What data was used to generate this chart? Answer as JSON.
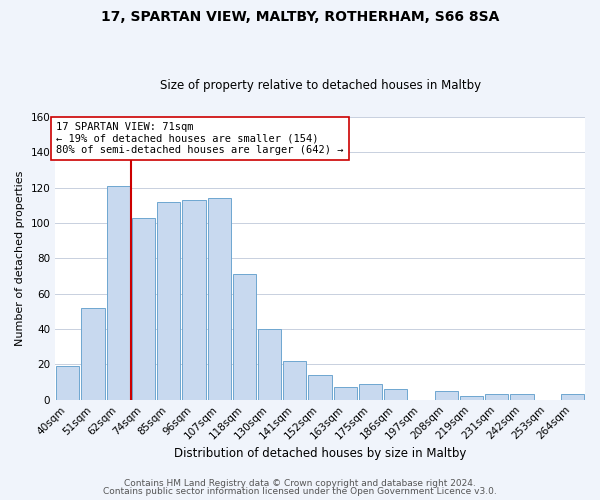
{
  "title": "17, SPARTAN VIEW, MALTBY, ROTHERHAM, S66 8SA",
  "subtitle": "Size of property relative to detached houses in Maltby",
  "xlabel": "Distribution of detached houses by size in Maltby",
  "ylabel": "Number of detached properties",
  "footer_line1": "Contains HM Land Registry data © Crown copyright and database right 2024.",
  "footer_line2": "Contains public sector information licensed under the Open Government Licence v3.0.",
  "bar_labels": [
    "40sqm",
    "51sqm",
    "62sqm",
    "74sqm",
    "85sqm",
    "96sqm",
    "107sqm",
    "118sqm",
    "130sqm",
    "141sqm",
    "152sqm",
    "163sqm",
    "175sqm",
    "186sqm",
    "197sqm",
    "208sqm",
    "219sqm",
    "231sqm",
    "242sqm",
    "253sqm",
    "264sqm"
  ],
  "bar_values": [
    19,
    52,
    121,
    103,
    112,
    113,
    114,
    71,
    40,
    22,
    14,
    7,
    9,
    6,
    0,
    5,
    2,
    3,
    3,
    0,
    3
  ],
  "bar_color": "#c8d9ef",
  "bar_edge_color": "#6ea6d0",
  "vline_x_index": 2,
  "vline_color": "#cc0000",
  "annotation_title": "17 SPARTAN VIEW: 71sqm",
  "annotation_line1": "← 19% of detached houses are smaller (154)",
  "annotation_line2": "80% of semi-detached houses are larger (642) →",
  "annotation_box_facecolor": "white",
  "annotation_box_edgecolor": "#cc0000",
  "ylim": [
    0,
    160
  ],
  "yticks": [
    0,
    20,
    40,
    60,
    80,
    100,
    120,
    140,
    160
  ],
  "fig_background_color": "#f0f4fb",
  "plot_background_color": "white",
  "grid_color": "#c8d0de",
  "title_fontsize": 10,
  "subtitle_fontsize": 8.5,
  "ylabel_fontsize": 8,
  "xlabel_fontsize": 8.5,
  "tick_fontsize": 7.5,
  "footer_fontsize": 6.5
}
